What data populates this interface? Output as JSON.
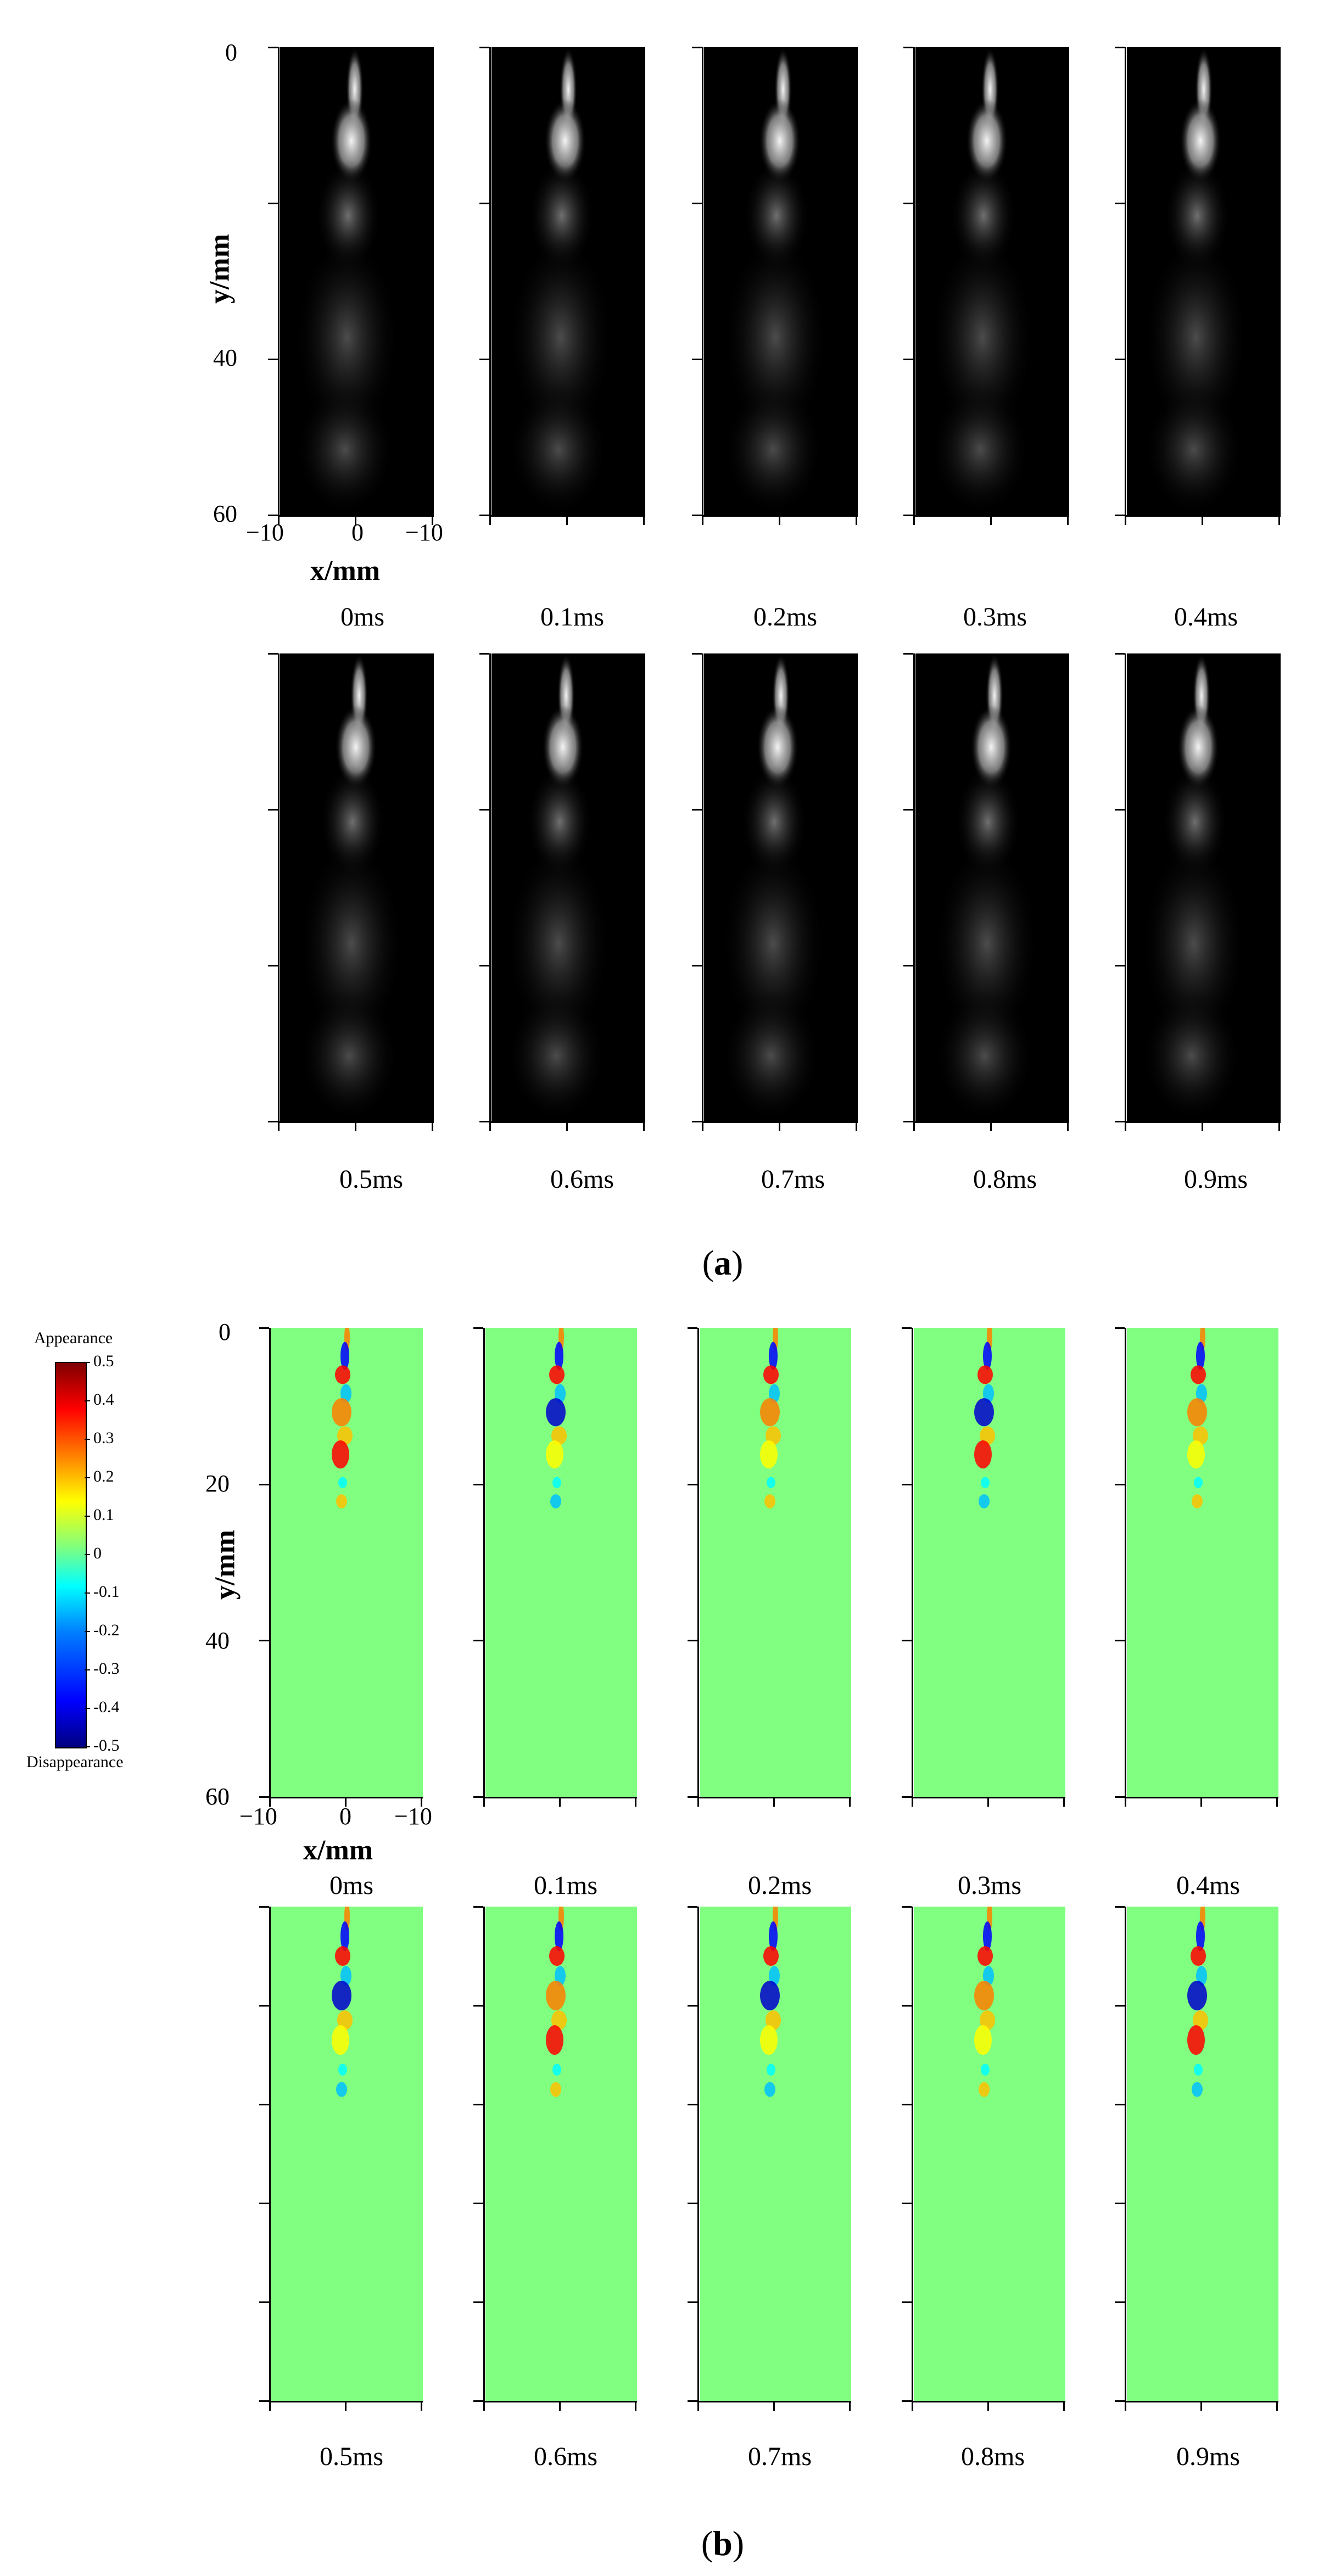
{
  "part_a": {
    "label_open": "(",
    "label_letter": "a",
    "label_close": ")",
    "y_axis_title": "y/mm",
    "x_axis_title": "x/mm",
    "y_ticks": [
      "0",
      "40",
      "60"
    ],
    "x_ticks": [
      "−10",
      "0",
      "−10"
    ],
    "times_row1": [
      "0ms",
      "0.1ms",
      "0.2ms",
      "0.3ms",
      "0.4ms"
    ],
    "times_row2": [
      "0.5ms",
      "0.6ms",
      "0.7ms",
      "0.8ms",
      "0.9ms"
    ]
  },
  "part_b": {
    "label_open": "(",
    "label_letter": "b",
    "label_close": ")",
    "y_axis_title": "y/mm",
    "x_axis_title": "x/mm",
    "y_ticks": [
      "0",
      "20",
      "40",
      "60"
    ],
    "x_ticks": [
      "−10",
      "0",
      "−10"
    ],
    "times_row1": [
      "0ms",
      "0.1ms",
      "0.2ms",
      "0.3ms",
      "0.4ms"
    ],
    "times_row2": [
      "0.5ms",
      "0.6ms",
      "0.7ms",
      "0.8ms",
      "0.9ms"
    ],
    "colorbar": {
      "top_label": "Appearance",
      "bottom_label": "Disappearance",
      "ticks": [
        "0.5",
        "0.4",
        "0.3",
        "0.2",
        "0.1",
        "0",
        "-0.1",
        "-0.2",
        "-0.3",
        "-0.4",
        "-0.5"
      ],
      "colors": [
        "#00007f",
        "#0000ff",
        "#007fff",
        "#00ffff",
        "#7fff7f",
        "#ffff00",
        "#ff7f00",
        "#ff0000",
        "#7f0000"
      ]
    },
    "background_color": "#80ff80"
  }
}
